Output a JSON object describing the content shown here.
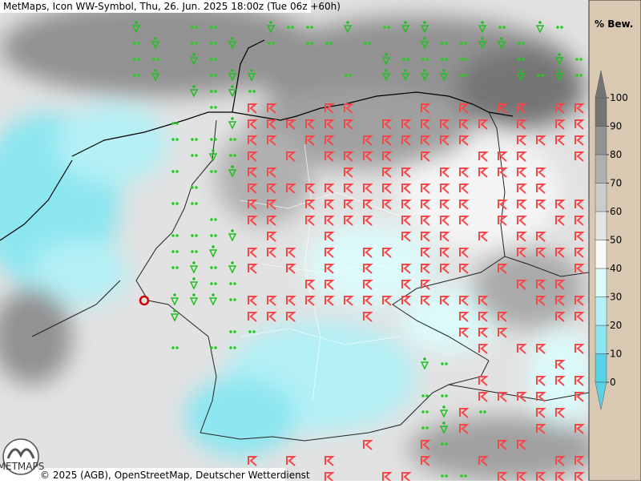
{
  "header": {
    "title": "MetMaps, Icon WW-Symbol, Thu, 26. Jun. 2025 18:00z (Tue 06z +60h)"
  },
  "colorbar": {
    "label": "% Bew.",
    "ticks": [
      0,
      10,
      20,
      30,
      40,
      50,
      60,
      70,
      80,
      90,
      100
    ],
    "colors": [
      "#5ad2e6",
      "#8ce6f0",
      "#b4f0f5",
      "#dcfafa",
      "#f8f8f8",
      "#e4e4e4",
      "#cccccc",
      "#b0b0b0",
      "#929292",
      "#747474"
    ]
  },
  "footer": {
    "credit": "© 2025 (AGB), OpenStreetMap, Deutscher Wetterdienst",
    "logo": "METMAPS"
  }
}
